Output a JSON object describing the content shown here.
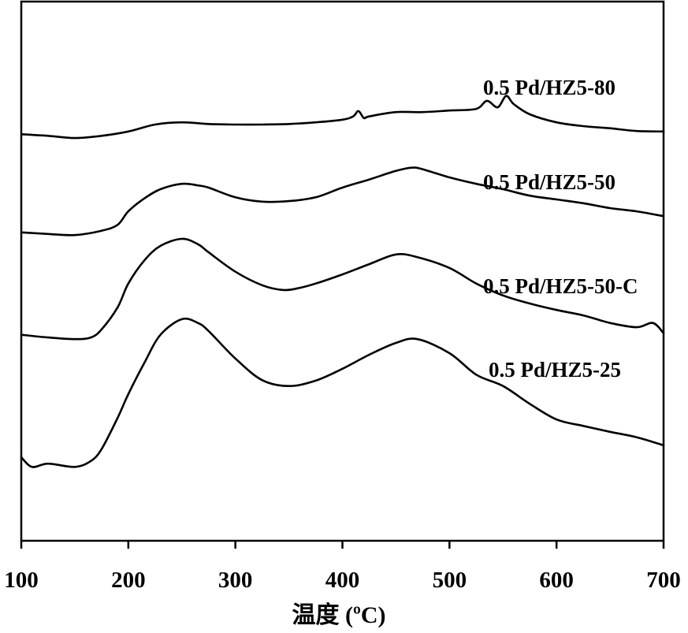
{
  "chart_data": {
    "type": "line",
    "xlabel": "温度 (ºC)",
    "ylabel": "",
    "xlim": [
      100,
      700
    ],
    "ylim": [
      0,
      100
    ],
    "xticks": [
      100,
      200,
      300,
      400,
      500,
      600,
      700
    ],
    "grid": false,
    "legend": "inline labels beside each curve (right side)",
    "y_axis_ticks_shown": false,
    "series": [
      {
        "name": "0.5 Pd/HZ5-80",
        "x": [
          100,
          125,
          150,
          175,
          200,
          225,
          250,
          275,
          300,
          325,
          350,
          375,
          400,
          410,
          415,
          420,
          425,
          450,
          475,
          500,
          525,
          535,
          545,
          553,
          560,
          575,
          600,
          625,
          650,
          675,
          700
        ],
        "y": [
          75.4,
          75.1,
          74.7,
          75.1,
          75.9,
          77.2,
          77.6,
          77.3,
          77.2,
          77.2,
          77.3,
          77.6,
          78.1,
          78.7,
          79.7,
          78.4,
          78.7,
          79.5,
          79.5,
          79.8,
          80.1,
          81.6,
          80.4,
          82.5,
          81.0,
          79.1,
          77.6,
          76.9,
          76.5,
          76.0,
          75.9
        ]
      },
      {
        "name": "0.5 Pd/HZ5-50",
        "x": [
          100,
          125,
          150,
          175,
          190,
          200,
          215,
          230,
          250,
          265,
          275,
          300,
          325,
          350,
          375,
          400,
          425,
          450,
          465,
          475,
          500,
          525,
          550,
          575,
          600,
          625,
          650,
          675,
          700
        ],
        "y": [
          57.2,
          56.9,
          56.7,
          57.5,
          58.6,
          61.1,
          63.5,
          65.2,
          66.2,
          65.9,
          65.5,
          63.7,
          62.9,
          63.0,
          63.7,
          65.5,
          67.0,
          68.6,
          69.2,
          68.9,
          67.4,
          66.2,
          65.2,
          64.0,
          63.3,
          62.6,
          61.7,
          61.1,
          60.2
        ]
      },
      {
        "name": "0.5 Pd/HZ5-50-C",
        "x": [
          100,
          125,
          150,
          165,
          175,
          190,
          200,
          215,
          230,
          250,
          265,
          275,
          300,
          325,
          345,
          360,
          375,
          400,
          425,
          450,
          470,
          500,
          525,
          550,
          575,
          600,
          625,
          650,
          675,
          690,
          700
        ],
        "y": [
          38.2,
          37.7,
          37.4,
          37.7,
          39.2,
          43.3,
          47.7,
          52.0,
          54.7,
          56.0,
          55.0,
          53.5,
          49.9,
          47.4,
          46.5,
          46.9,
          47.7,
          49.4,
          51.3,
          53.1,
          52.6,
          50.6,
          47.7,
          45.5,
          44.0,
          42.8,
          41.8,
          40.4,
          39.6,
          40.4,
          38.5
        ]
      },
      {
        "name": "0.5 Pd/HZ5-25",
        "x": [
          100,
          110,
          125,
          150,
          165,
          175,
          190,
          200,
          215,
          230,
          250,
          265,
          275,
          300,
          325,
          350,
          375,
          400,
          425,
          450,
          470,
          500,
          525,
          550,
          575,
          600,
          625,
          650,
          675,
          700
        ],
        "y": [
          15.5,
          13.7,
          14.3,
          13.7,
          14.8,
          17.0,
          22.8,
          27.2,
          33.0,
          38.2,
          41.1,
          40.4,
          38.9,
          33.8,
          29.8,
          28.7,
          29.7,
          31.9,
          34.5,
          36.7,
          37.4,
          34.8,
          30.8,
          28.7,
          25.4,
          22.5,
          21.3,
          20.2,
          19.2,
          17.7
        ]
      }
    ]
  },
  "colors": {
    "line": "#000000",
    "background": "#ffffff"
  }
}
